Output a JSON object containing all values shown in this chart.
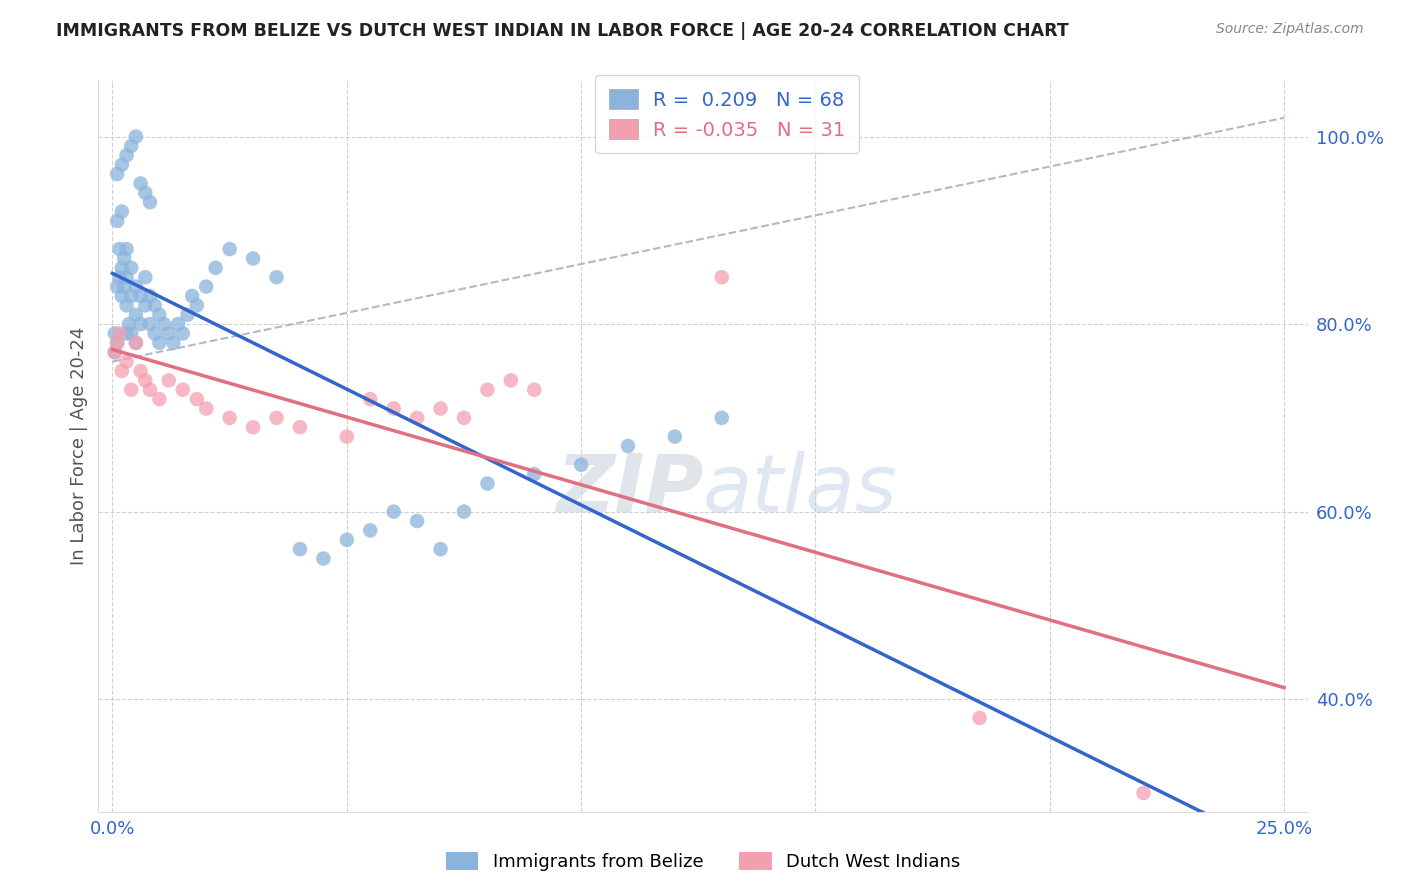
{
  "title": "IMMIGRANTS FROM BELIZE VS DUTCH WEST INDIAN IN LABOR FORCE | AGE 20-24 CORRELATION CHART",
  "source": "Source: ZipAtlas.com",
  "ylabel": "In Labor Force | Age 20-24",
  "xmin": 0.0,
  "xmax": 0.25,
  "ymin": 0.28,
  "ymax": 1.06,
  "belize_R": 0.209,
  "belize_N": 68,
  "dutch_R": -0.035,
  "dutch_N": 31,
  "belize_color": "#8ab4dc",
  "dutch_color": "#f2a0b0",
  "belize_line_color": "#3366cc",
  "dutch_line_color": "#e07080",
  "diagonal_color": "#99aabb",
  "watermark_zip": "ZIP",
  "watermark_atlas": "atlas",
  "belize_x": [
    0.0005,
    0.0005,
    0.001,
    0.001,
    0.001,
    0.0015,
    0.0015,
    0.002,
    0.002,
    0.002,
    0.0025,
    0.0025,
    0.003,
    0.003,
    0.003,
    0.003,
    0.0035,
    0.004,
    0.004,
    0.004,
    0.005,
    0.005,
    0.005,
    0.006,
    0.006,
    0.007,
    0.007,
    0.008,
    0.008,
    0.009,
    0.009,
    0.01,
    0.01,
    0.011,
    0.012,
    0.013,
    0.014,
    0.015,
    0.016,
    0.017,
    0.018,
    0.02,
    0.022,
    0.025,
    0.03,
    0.035,
    0.04,
    0.045,
    0.05,
    0.055,
    0.06,
    0.065,
    0.07,
    0.075,
    0.08,
    0.09,
    0.1,
    0.11,
    0.12,
    0.13,
    0.001,
    0.002,
    0.003,
    0.004,
    0.005,
    0.006,
    0.007,
    0.008
  ],
  "belize_y": [
    0.77,
    0.79,
    0.78,
    0.84,
    0.91,
    0.85,
    0.88,
    0.83,
    0.86,
    0.92,
    0.84,
    0.87,
    0.79,
    0.82,
    0.85,
    0.88,
    0.8,
    0.79,
    0.83,
    0.86,
    0.78,
    0.81,
    0.84,
    0.8,
    0.83,
    0.82,
    0.85,
    0.8,
    0.83,
    0.79,
    0.82,
    0.78,
    0.81,
    0.8,
    0.79,
    0.78,
    0.8,
    0.79,
    0.81,
    0.83,
    0.82,
    0.84,
    0.86,
    0.88,
    0.87,
    0.85,
    0.56,
    0.55,
    0.57,
    0.58,
    0.6,
    0.59,
    0.56,
    0.6,
    0.63,
    0.64,
    0.65,
    0.67,
    0.68,
    0.7,
    0.96,
    0.97,
    0.98,
    0.99,
    1.0,
    0.95,
    0.94,
    0.93
  ],
  "dutch_x": [
    0.0005,
    0.001,
    0.0015,
    0.002,
    0.003,
    0.004,
    0.005,
    0.006,
    0.007,
    0.008,
    0.01,
    0.012,
    0.015,
    0.018,
    0.02,
    0.025,
    0.03,
    0.035,
    0.04,
    0.05,
    0.055,
    0.06,
    0.065,
    0.07,
    0.075,
    0.08,
    0.085,
    0.09,
    0.13,
    0.185,
    0.22
  ],
  "dutch_y": [
    0.77,
    0.78,
    0.79,
    0.75,
    0.76,
    0.73,
    0.78,
    0.75,
    0.74,
    0.73,
    0.72,
    0.74,
    0.73,
    0.72,
    0.71,
    0.7,
    0.69,
    0.7,
    0.69,
    0.68,
    0.72,
    0.71,
    0.7,
    0.71,
    0.7,
    0.73,
    0.74,
    0.73,
    0.85,
    0.38,
    0.3
  ],
  "ytick_positions": [
    0.4,
    0.6,
    0.8,
    1.0
  ],
  "ytick_labels": [
    "40.0%",
    "60.0%",
    "80.0%",
    "100.0%"
  ],
  "xtick_positions": [
    0.0,
    0.05,
    0.1,
    0.15,
    0.2,
    0.25
  ],
  "xtick_labels_show": [
    "0.0%",
    "",
    "",
    "",
    "",
    "25.0%"
  ]
}
